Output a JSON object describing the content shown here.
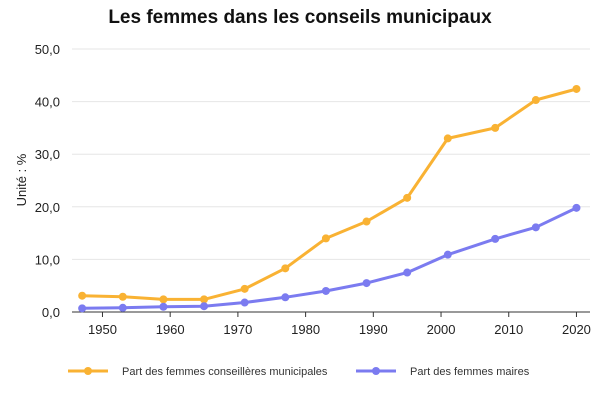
{
  "chart_data": {
    "type": "line",
    "title": "Les femmes dans les conseils municipaux",
    "ylabel": "Unité : %",
    "xlabel": "",
    "xlim": [
      1945.5,
      2022
    ],
    "ylim": [
      0,
      50
    ],
    "x_ticks": [
      "1950",
      "1960",
      "1970",
      "1980",
      "1990",
      "2000",
      "2010",
      "2020"
    ],
    "y_ticks": [
      "0,0",
      "10,0",
      "20,0",
      "30,0",
      "40,0",
      "50,0"
    ],
    "grid": "horizontal",
    "legend_position": "bottom",
    "series": [
      {
        "name": "Part des femmes conseillères municipales",
        "color": "#f9b233",
        "x": [
          1947,
          1953,
          1959,
          1965,
          1971,
          1977,
          1983,
          1989,
          1995,
          2001,
          2008,
          2014,
          2020
        ],
        "y": [
          3.1,
          2.9,
          2.4,
          2.4,
          4.4,
          8.3,
          14.0,
          17.2,
          21.7,
          33.0,
          35.0,
          40.3,
          42.4
        ]
      },
      {
        "name": "Part des femmes maires",
        "color": "#7b7bf0",
        "x": [
          1947,
          1953,
          1959,
          1965,
          1971,
          1977,
          1983,
          1989,
          1995,
          2001,
          2008,
          2014,
          2020
        ],
        "y": [
          0.7,
          0.8,
          1.0,
          1.1,
          1.8,
          2.8,
          4.0,
          5.5,
          7.5,
          10.9,
          13.9,
          16.1,
          19.8
        ]
      }
    ]
  }
}
